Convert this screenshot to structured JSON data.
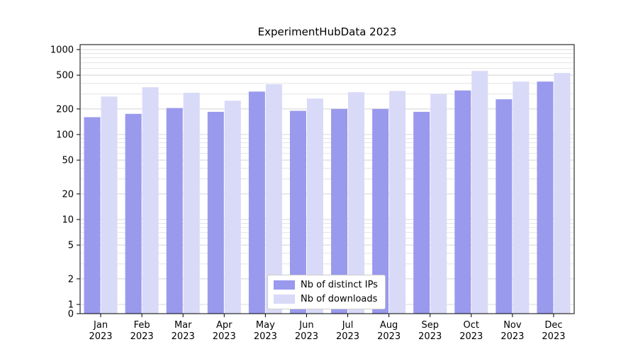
{
  "chart_data": {
    "type": "bar",
    "title": "ExperimentHubData 2023",
    "categories": [
      "Jan",
      "Feb",
      "Mar",
      "Apr",
      "May",
      "Jun",
      "Jul",
      "Aug",
      "Sep",
      "Oct",
      "Nov",
      "Dec"
    ],
    "year_label": "2023",
    "series": [
      {
        "name": "Nb of distinct IPs",
        "color": "#9999ed",
        "values": [
          160,
          175,
          205,
          185,
          320,
          190,
          200,
          200,
          185,
          330,
          260,
          420
        ]
      },
      {
        "name": "Nb of downloads",
        "color": "#d9d9f8",
        "values": [
          280,
          360,
          310,
          250,
          390,
          265,
          315,
          325,
          300,
          560,
          420,
          530
        ]
      }
    ],
    "yscale": "log",
    "yticks": [
      0,
      1,
      2,
      5,
      10,
      20,
      50,
      100,
      200,
      500,
      1000
    ],
    "ylim": [
      0,
      1000
    ],
    "grid": true,
    "legend_position": "bottom-center",
    "colors": {
      "grid_minor": "#e4e4e4",
      "grid_major": "#d8d8d8",
      "axis": "#000000",
      "text": "#000000"
    }
  }
}
